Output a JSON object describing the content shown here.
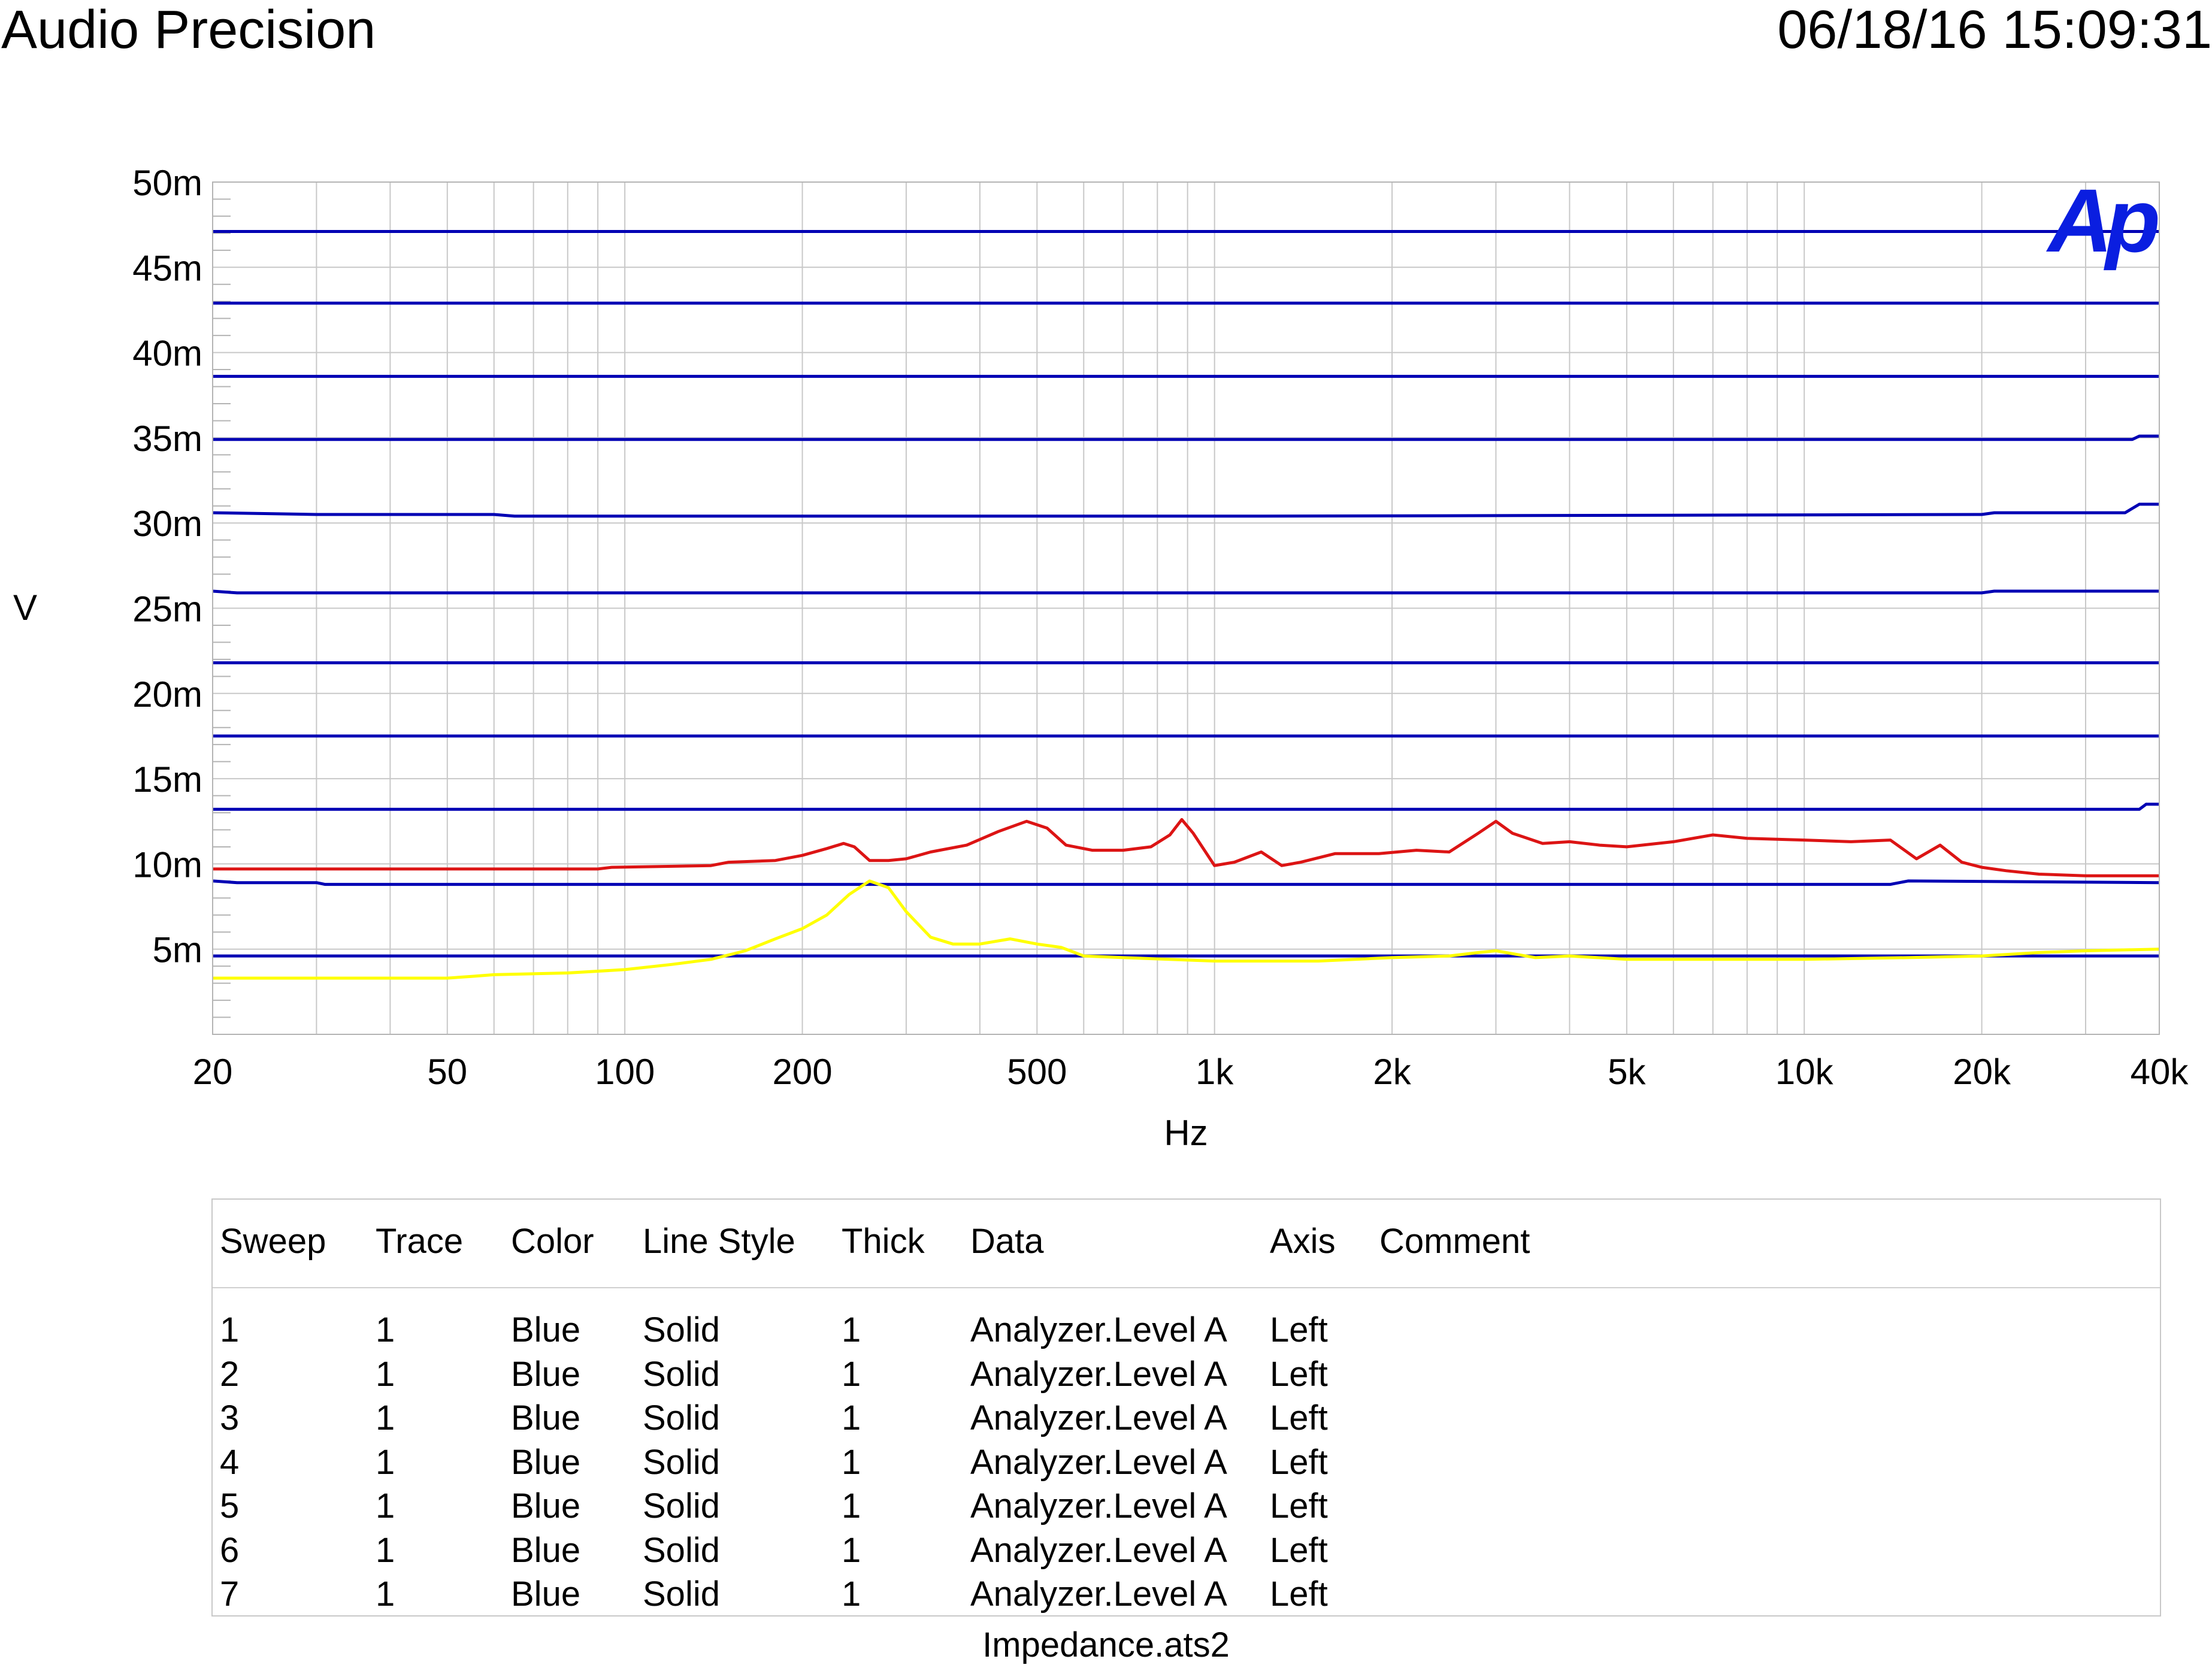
{
  "header": {
    "brand": "Audio Precision",
    "timestamp": "06/18/16 15:09:31"
  },
  "logo_text": "Ap",
  "chart_data": {
    "type": "line",
    "xlabel": "Hz",
    "ylabel": "V",
    "x_scale": "log",
    "xlim": [
      20,
      40000
    ],
    "ylim": [
      0,
      0.05
    ],
    "x_ticks": [
      {
        "v": 20,
        "label": "20"
      },
      {
        "v": 50,
        "label": "50"
      },
      {
        "v": 100,
        "label": "100"
      },
      {
        "v": 200,
        "label": "200"
      },
      {
        "v": 500,
        "label": "500"
      },
      {
        "v": 1000,
        "label": "1k"
      },
      {
        "v": 2000,
        "label": "2k"
      },
      {
        "v": 5000,
        "label": "5k"
      },
      {
        "v": 10000,
        "label": "10k"
      },
      {
        "v": 20000,
        "label": "20k"
      },
      {
        "v": 40000,
        "label": "40k"
      }
    ],
    "y_ticks": [
      {
        "v": 0.05,
        "label": "50m"
      },
      {
        "v": 0.045,
        "label": "45m"
      },
      {
        "v": 0.04,
        "label": "40m"
      },
      {
        "v": 0.035,
        "label": "35m"
      },
      {
        "v": 0.03,
        "label": "30m"
      },
      {
        "v": 0.025,
        "label": "25m"
      },
      {
        "v": 0.02,
        "label": "20m"
      },
      {
        "v": 0.015,
        "label": "15m"
      },
      {
        "v": 0.01,
        "label": "10m"
      },
      {
        "v": 0.005,
        "label": "5m"
      }
    ],
    "grid": true,
    "series": [
      {
        "color": "#0000b4",
        "x": [
          20,
          40000
        ],
        "y": [
          0.0471,
          0.0471
        ]
      },
      {
        "color": "#0000b4",
        "x": [
          20,
          40000
        ],
        "y": [
          0.0429,
          0.0429
        ]
      },
      {
        "color": "#0000b4",
        "x": [
          20,
          40000
        ],
        "y": [
          0.0386,
          0.0386
        ]
      },
      {
        "color": "#0000b4",
        "x": [
          20,
          36000,
          37000,
          40000
        ],
        "y": [
          0.0349,
          0.0349,
          0.0351,
          0.0351
        ]
      },
      {
        "color": "#0000b4",
        "x": [
          20,
          30,
          60,
          65,
          1200,
          20000,
          21000,
          35000,
          37000,
          40000
        ],
        "y": [
          0.0306,
          0.0305,
          0.0305,
          0.0304,
          0.0304,
          0.0305,
          0.0306,
          0.0306,
          0.0311,
          0.0311
        ]
      },
      {
        "color": "#0000b4",
        "x": [
          20,
          22,
          20000,
          21000,
          40000
        ],
        "y": [
          0.026,
          0.0259,
          0.0259,
          0.026,
          0.026
        ]
      },
      {
        "color": "#0000b4",
        "x": [
          20,
          40000
        ],
        "y": [
          0.0218,
          0.0218
        ]
      },
      {
        "color": "#0000b4",
        "x": [
          20,
          40000
        ],
        "y": [
          0.0175,
          0.0175
        ]
      },
      {
        "color": "#0000b4",
        "x": [
          20,
          37000,
          38000,
          40000
        ],
        "y": [
          0.0132,
          0.0132,
          0.0135,
          0.0135
        ]
      },
      {
        "color": "#0000b4",
        "x": [
          20,
          22,
          30,
          31,
          14000,
          15000,
          40000
        ],
        "y": [
          0.009,
          0.0089,
          0.0089,
          0.0088,
          0.0088,
          0.009,
          0.0089
        ]
      },
      {
        "color": "#0000b4",
        "x": [
          20,
          40000
        ],
        "y": [
          0.0046,
          0.0046
        ]
      },
      {
        "color": "#dc1414",
        "x": [
          20,
          90,
          95,
          140,
          150,
          180,
          200,
          220,
          235,
          245,
          260,
          280,
          300,
          330,
          380,
          430,
          480,
          520,
          560,
          620,
          700,
          780,
          840,
          880,
          920,
          1000,
          1080,
          1200,
          1300,
          1400,
          1600,
          1900,
          2200,
          2500,
          2800,
          3000,
          3200,
          3600,
          4000,
          4500,
          5000,
          6000,
          7000,
          8000,
          10000,
          12000,
          14000,
          15500,
          17000,
          18500,
          20000,
          22000,
          25000,
          30000,
          40000
        ],
        "y": [
          0.0097,
          0.0097,
          0.0098,
          0.0099,
          0.0101,
          0.0102,
          0.0105,
          0.0109,
          0.0112,
          0.011,
          0.0102,
          0.0102,
          0.0103,
          0.0107,
          0.0111,
          0.0119,
          0.0125,
          0.0121,
          0.0111,
          0.0108,
          0.0108,
          0.011,
          0.0117,
          0.0126,
          0.0118,
          0.0099,
          0.0101,
          0.0107,
          0.0099,
          0.0101,
          0.0106,
          0.0106,
          0.0108,
          0.0107,
          0.0118,
          0.0125,
          0.0118,
          0.0112,
          0.0113,
          0.0111,
          0.011,
          0.0113,
          0.0117,
          0.0115,
          0.0114,
          0.0113,
          0.0114,
          0.0103,
          0.0111,
          0.0101,
          0.0098,
          0.0096,
          0.0094,
          0.0093,
          0.0093
        ]
      },
      {
        "color": "#ffff00",
        "x": [
          20,
          50,
          55,
          60,
          80,
          100,
          120,
          140,
          160,
          180,
          200,
          220,
          240,
          260,
          280,
          300,
          330,
          360,
          400,
          450,
          500,
          550,
          600,
          700,
          1000,
          1500,
          2000,
          2500,
          2800,
          3000,
          3500,
          4000,
          5000,
          7000,
          10000,
          15000,
          20000,
          25000,
          30000,
          40000
        ],
        "y": [
          0.0033,
          0.0033,
          0.0034,
          0.0035,
          0.0036,
          0.0038,
          0.0041,
          0.0044,
          0.0049,
          0.0056,
          0.0062,
          0.007,
          0.0082,
          0.009,
          0.0086,
          0.0072,
          0.0057,
          0.0053,
          0.0053,
          0.0056,
          0.0053,
          0.0051,
          0.0046,
          0.0045,
          0.0043,
          0.0043,
          0.0045,
          0.0046,
          0.0048,
          0.0049,
          0.0045,
          0.0046,
          0.0044,
          0.0044,
          0.0044,
          0.0045,
          0.0046,
          0.0048,
          0.0049,
          0.005
        ]
      }
    ]
  },
  "legend": {
    "columns": [
      "Sweep",
      "Trace",
      "Color",
      "Line Style",
      "Thick",
      "Data",
      "Axis",
      "Comment"
    ],
    "rows": [
      [
        "1",
        "1",
        "Blue",
        "Solid",
        "1",
        "Analyzer.Level A",
        "Left",
        ""
      ],
      [
        "2",
        "1",
        "Blue",
        "Solid",
        "1",
        "Analyzer.Level A",
        "Left",
        ""
      ],
      [
        "3",
        "1",
        "Blue",
        "Solid",
        "1",
        "Analyzer.Level A",
        "Left",
        ""
      ],
      [
        "4",
        "1",
        "Blue",
        "Solid",
        "1",
        "Analyzer.Level A",
        "Left",
        ""
      ],
      [
        "5",
        "1",
        "Blue",
        "Solid",
        "1",
        "Analyzer.Level A",
        "Left",
        ""
      ],
      [
        "6",
        "1",
        "Blue",
        "Solid",
        "1",
        "Analyzer.Level A",
        "Left",
        ""
      ],
      [
        "7",
        "1",
        "Blue",
        "Solid",
        "1",
        "Analyzer.Level A",
        "Left",
        ""
      ]
    ]
  },
  "footer": "Impedance.ats2"
}
